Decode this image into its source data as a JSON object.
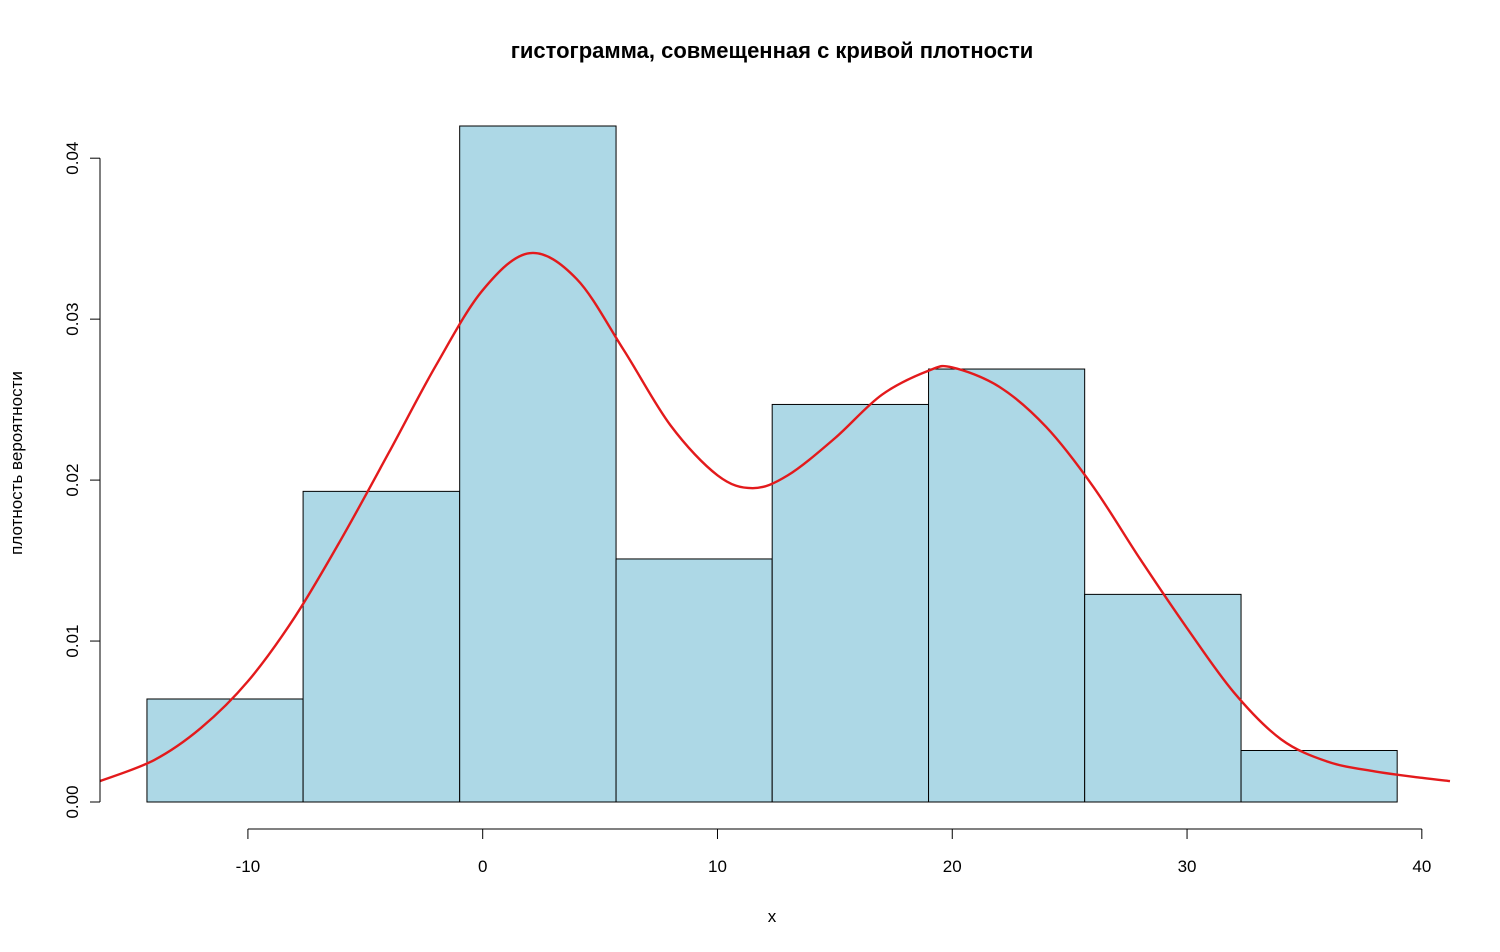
{
  "chart_data": {
    "type": "bar",
    "title": "гистограмма, совмещенная с кривой плотности",
    "xlabel": "x",
    "ylabel": "плотность вероятности",
    "xlim": [
      -16.3,
      41.2
    ],
    "ylim": [
      0,
      0.042
    ],
    "x_ticks": [
      -10,
      0,
      10,
      20,
      30,
      40
    ],
    "x_tick_labels": [
      "-10",
      "0",
      "10",
      "20",
      "30",
      "40"
    ],
    "y_ticks": [
      0.0,
      0.01,
      0.02,
      0.03,
      0.04
    ],
    "y_tick_labels": [
      "0.00",
      "0.01",
      "0.02",
      "0.03",
      "0.04"
    ],
    "bins": [
      {
        "start": -14.3,
        "end": -7.65,
        "density": 0.0064
      },
      {
        "start": -7.65,
        "end": -0.98,
        "density": 0.0193
      },
      {
        "start": -0.98,
        "end": 5.68,
        "density": 0.042
      },
      {
        "start": 5.68,
        "end": 12.33,
        "density": 0.0151
      },
      {
        "start": 12.33,
        "end": 18.99,
        "density": 0.0247
      },
      {
        "start": 18.99,
        "end": 25.64,
        "density": 0.0269
      },
      {
        "start": 25.64,
        "end": 32.3,
        "density": 0.0129
      },
      {
        "start": 32.3,
        "end": 38.95,
        "density": 0.0032
      }
    ],
    "density_curve": {
      "x": [
        -16.3,
        -14,
        -12,
        -10,
        -8,
        -6,
        -4,
        -2,
        0,
        2,
        4,
        6,
        8,
        10,
        11.5,
        13,
        15,
        17,
        19,
        20,
        22,
        24,
        26,
        28,
        30,
        32,
        34,
        36,
        38,
        40,
        41.2
      ],
      "y": [
        0.0013,
        0.0026,
        0.0046,
        0.0075,
        0.0115,
        0.0164,
        0.0217,
        0.0271,
        0.0318,
        0.0341,
        0.0325,
        0.0281,
        0.0234,
        0.0203,
        0.0195,
        0.0203,
        0.0226,
        0.0253,
        0.0268,
        0.027,
        0.0258,
        0.0233,
        0.0196,
        0.0151,
        0.0108,
        0.0068,
        0.0039,
        0.0025,
        0.0019,
        0.0015,
        0.0013
      ]
    },
    "bar_fill": "#add8e6",
    "bar_stroke": "#000000",
    "curve_color": "#e31a1c",
    "grid": false,
    "legend": "none"
  }
}
